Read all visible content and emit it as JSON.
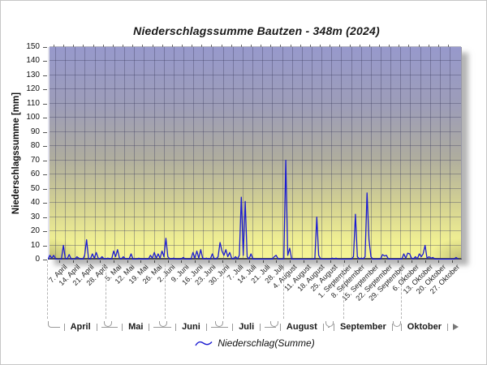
{
  "chart_data": {
    "type": "line",
    "title": "Niederschlagssumme Bautzen - 348m (2024)",
    "ylabel": "Niederschlagssumme [mm]",
    "legend": "Niederschlag(Summe)",
    "ylim": [
      0,
      150
    ],
    "y_ticks": [
      0,
      10,
      20,
      30,
      40,
      50,
      60,
      70,
      80,
      90,
      100,
      110,
      120,
      130,
      140,
      150
    ],
    "x_tick_labels": [
      "7. April",
      "14. April",
      "21. April",
      "28. April",
      "5. Mai",
      "12. Mai",
      "19. Mai",
      "26. Mai",
      "2. Juni",
      "9. Juni",
      "16. Juni",
      "23. Juni",
      "30. Juni",
      "7. Juli",
      "14. Juli",
      "21. Juli",
      "28. Juli",
      "4. August",
      "11. August",
      "18. August",
      "25. August",
      "1. September",
      "8. September",
      "15. September",
      "22. September",
      "29. September",
      "6. Oktober",
      "13. Oktober",
      "20. Oktober",
      "27. Oktober"
    ],
    "x_first_tick_day_offset": 6,
    "x_tick_step_days": 7,
    "month_groups": [
      "April",
      "Mai",
      "Juni",
      "Juli",
      "August",
      "September",
      "Oktober"
    ],
    "month_boundaries_days": [
      0,
      30,
      61,
      91,
      122,
      153,
      183
    ],
    "total_days": 214,
    "grid": true,
    "legend_position": "bottom-center",
    "colors": {
      "line": "#1b1bd2",
      "plot_gradient_top": "#9799cc",
      "plot_gradient_bottom": "#f5f495",
      "gridline": "#3e3e60",
      "axis_bracket": "#999999"
    },
    "series": [
      {
        "name": "Niederschlag(Summe)",
        "unit": "mm",
        "start_label": "1. April",
        "values_daily_mm": [
          0,
          3,
          1,
          3,
          0.5,
          0,
          0,
          0.5,
          10,
          1,
          0.5,
          3.5,
          0.5,
          0,
          0,
          2,
          1,
          0.5,
          0,
          3,
          14,
          1,
          0.5,
          4,
          1,
          5,
          1,
          0.5,
          2,
          0.5,
          0.5,
          1,
          0.5,
          0.5,
          6,
          2,
          7,
          1,
          0.5,
          2,
          0.5,
          0.5,
          0.5,
          4,
          0.3,
          0.3,
          0.3,
          1,
          0.4,
          0.3,
          0.4,
          0.5,
          0.3,
          3,
          1,
          5,
          1,
          4,
          1,
          6,
          2,
          15,
          2,
          0.5,
          0.5,
          1,
          0.3,
          0.3,
          0.3,
          0.5,
          1.5,
          0.3,
          0.3,
          0.3,
          0.5,
          5,
          1,
          6,
          1,
          7,
          1,
          0.5,
          1,
          0.3,
          0.5,
          4,
          0.5,
          0.5,
          2,
          12,
          6,
          3,
          7,
          2,
          5,
          1,
          0.5,
          2,
          0.5,
          3,
          44,
          3,
          41,
          2,
          0.5,
          4,
          0.5,
          0.3,
          0.3,
          0.3,
          0.3,
          0.3,
          0.3,
          0.3,
          0.3,
          0.3,
          0.3,
          2,
          3,
          0.5,
          0.3,
          0.3,
          0.5,
          70,
          3,
          8,
          0.5,
          0.2,
          0.2,
          0.2,
          0.2,
          0.2,
          0.2,
          0.2,
          0.2,
          0.2,
          0.2,
          0.2,
          0.5,
          30,
          3,
          0.5,
          0.2,
          0.2,
          0.2,
          0.2,
          0.2,
          1,
          0.5,
          1,
          0.2,
          0.2,
          0.2,
          0.3,
          0.3,
          0.3,
          0.3,
          0.5,
          2,
          32,
          2,
          0.5,
          1,
          0.5,
          2,
          47,
          14,
          2,
          0.3,
          0.3,
          0.3,
          0.3,
          0.5,
          3.5,
          2.5,
          3,
          0.5,
          0.3,
          0.3,
          0.3,
          0.3,
          0.3,
          0.3,
          0.5,
          4,
          1,
          4.5,
          4,
          1,
          0.5,
          2,
          0.5,
          4,
          2,
          4,
          10,
          1,
          2,
          1,
          1.5,
          0.5,
          0.3,
          0.3,
          0.3,
          0.3,
          0.3,
          0.3,
          0.3,
          0.3,
          0.3,
          0.3,
          1.5,
          0.5
        ]
      }
    ]
  }
}
